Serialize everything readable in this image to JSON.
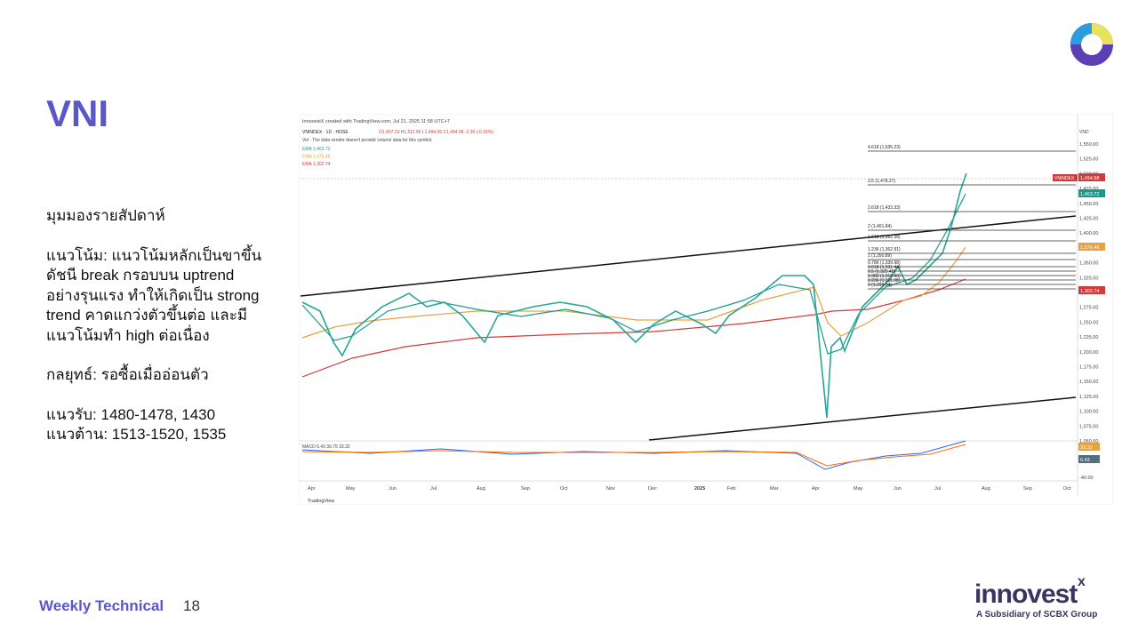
{
  "header": {
    "title": "VNI"
  },
  "body": {
    "heading": "มุมมองรายสัปดาห์",
    "trend_lines": [
      "แนวโน้ม: แนวโน้มหลักเป็นขาขึ้น",
      "ดัชนี break กรอบบน uptrend",
      "อย่างรุนแรง ทำให้เกิดเป็น strong",
      "trend คาดแกว่งตัวขึ้นต่อ และมี",
      "แนวโน้มทำ high ต่อเนื่อง"
    ],
    "strategy": "กลยุทธ์: รอซื้อเมื่ออ่อนตัว",
    "support": "แนวรับ: 1480-1478, 1430",
    "resistance": "แนวต้าน: 1513-1520, 1535"
  },
  "chart_image": {
    "credit": "InnovestX created with TradingView.com, Jul 21, 2025 11:58 UTC+7",
    "symbol": "VNINDEX · 1D · HOSE",
    "ohlc": "O1,497.29 H1,511.96 L1,494.06 C1,494.98 -2.30 (-0.15%)",
    "vol_note": "Vol · The data vendor doesn't provide volume data for this symbol.",
    "emas": [
      "EMA 1,463.72",
      "EMA 1,376.46",
      "EMA 1,302.74"
    ],
    "axis_title": "VND",
    "price_axis": [
      "1,550.00",
      "1,525.00",
      "1,500.00",
      "1,475.00",
      "1,450.00",
      "1,425.00",
      "1,400.00",
      "1,375.00",
      "1,350.00",
      "1,325.00",
      "1,300.00",
      "1,275.00",
      "1,250.00",
      "1,225.00",
      "1,200.00",
      "1,175.00",
      "1,150.00",
      "1,125.00",
      "1,100.00",
      "1,075.00",
      "1,050.00"
    ],
    "macd_axis": "-40.00",
    "fib_levels": [
      "4.618 (1,535.23)",
      "3.5 (1,478.27)",
      "2.618 (1,433.33)",
      "2 (1,401.84)",
      "1.618 (1,382.38)",
      "1.236 (1,362.91)",
      "1 (1,350.89)",
      "0.786 (1,339.98)",
      "0.618 (1,331.44)",
      "0.5 (1,325.42)",
      "0.382 (1,319.40)",
      "0.236 (1,311.98)",
      "0 (1,299.94)"
    ],
    "price_tags": [
      "1,494.98",
      "1,463.72",
      "1,376.46",
      "1,302.74"
    ],
    "symbol_tag": "VNINDEX",
    "macd_tags": [
      "33.32",
      "6.43"
    ],
    "macd_label": "MACD 6.43 39.75 33.32",
    "months": [
      "Apr",
      "May",
      "Jun",
      "Jul",
      "Aug",
      "Sep",
      "Oct",
      "Nov",
      "Dec",
      "2025",
      "Feb",
      "Mar",
      "Apr",
      "May",
      "Jun",
      "Jul",
      "Aug",
      "Sep",
      "Oct"
    ],
    "watermark": "TradingView"
  },
  "footer": {
    "label": "Weekly Technical",
    "page": "18",
    "brand": "innovest",
    "brand_mark": "x",
    "tagline": "A Subsidiary of SCBX Group"
  }
}
